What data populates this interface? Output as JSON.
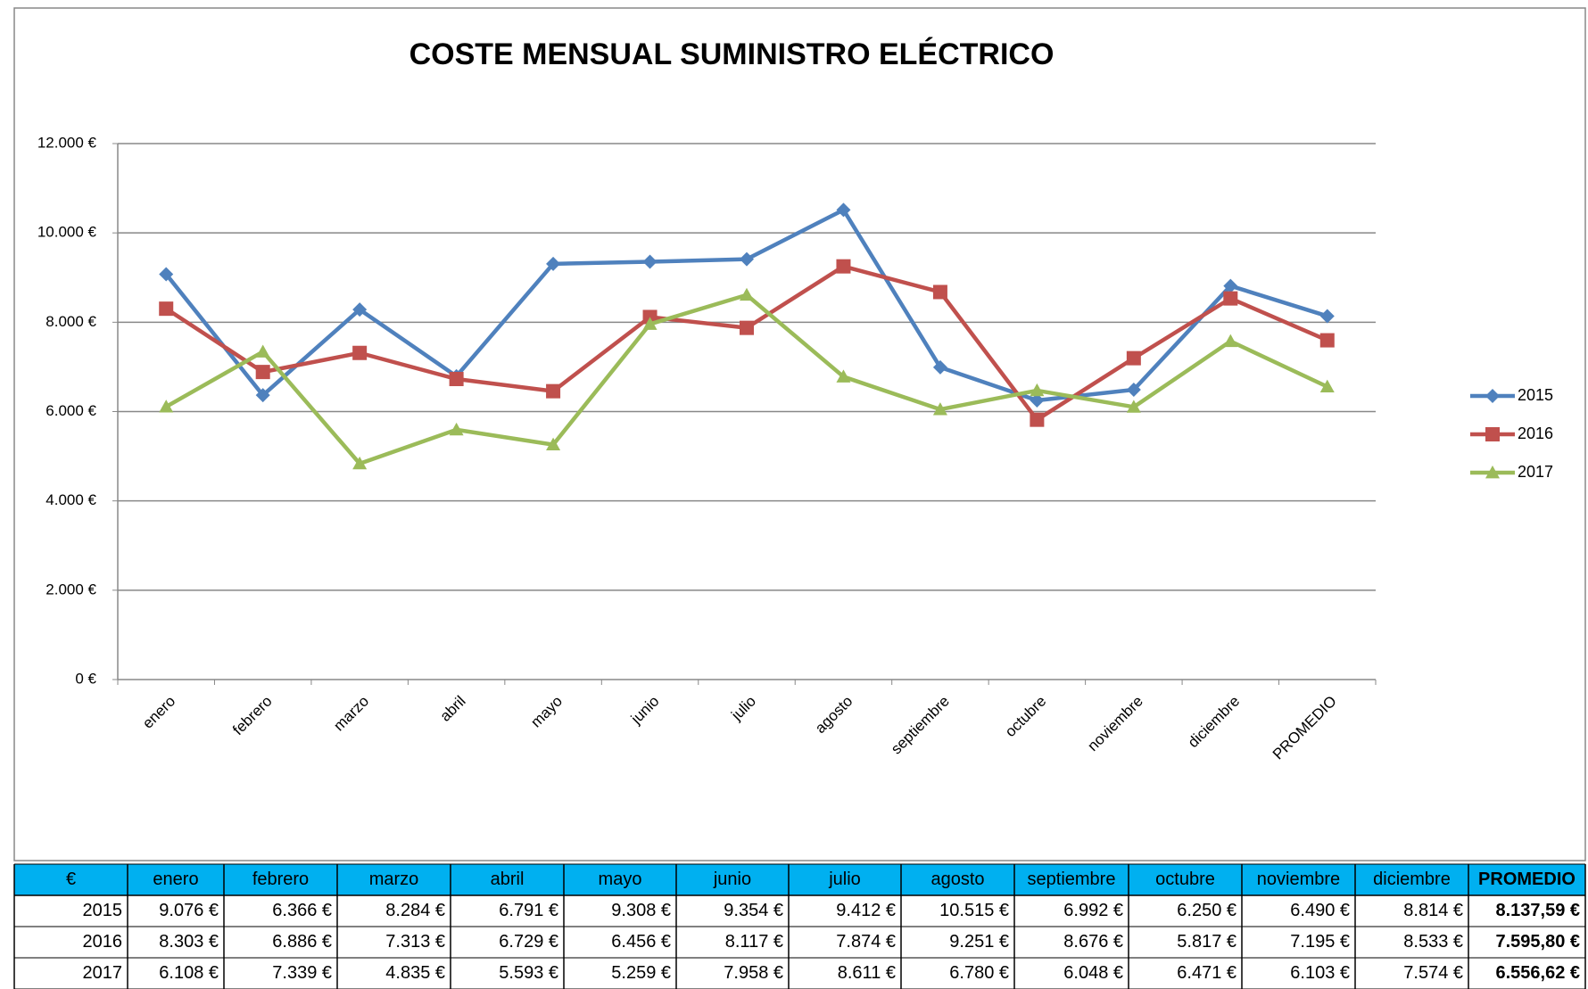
{
  "chart_data": {
    "type": "line",
    "title": "COSTE MENSUAL SUMINISTRO ELÉCTRICO",
    "categories": [
      "enero",
      "febrero",
      "marzo",
      "abril",
      "mayo",
      "junio",
      "julio",
      "agosto",
      "septiembre",
      "octubre",
      "noviembre",
      "diciembre",
      "PROMEDIO"
    ],
    "series": [
      {
        "name": "2015",
        "color": "#4f81bd",
        "marker": "diamond",
        "values": [
          9076,
          6366,
          8284,
          6791,
          9308,
          9354,
          9412,
          10515,
          6992,
          6250,
          6490,
          8814,
          8137.59
        ],
        "value_labels": [
          "9.076 €",
          "6.366 €",
          "8.284 €",
          "6.791 €",
          "9.308 €",
          "9.354 €",
          "9.412 €",
          "10.515 €",
          "6.992 €",
          "6.250 €",
          "6.490 €",
          "8.814 €",
          "8.137,59 €"
        ]
      },
      {
        "name": "2016",
        "color": "#c0504d",
        "marker": "square",
        "values": [
          8303,
          6886,
          7313,
          6729,
          6456,
          8117,
          7874,
          9251,
          8676,
          5817,
          7195,
          8533,
          7595.8
        ],
        "value_labels": [
          "8.303 €",
          "6.886 €",
          "7.313 €",
          "6.729 €",
          "6.456 €",
          "8.117 €",
          "7.874 €",
          "9.251 €",
          "8.676 €",
          "5.817 €",
          "7.195 €",
          "8.533 €",
          "7.595,80 €"
        ]
      },
      {
        "name": "2017",
        "color": "#9bbb59",
        "marker": "triangle",
        "values": [
          6108,
          7339,
          4835,
          5593,
          5259,
          7958,
          8611,
          6780,
          6048,
          6471,
          6103,
          7574,
          6556.62
        ],
        "value_labels": [
          "6.108 €",
          "7.339 €",
          "4.835 €",
          "5.593 €",
          "5.259 €",
          "7.958 €",
          "8.611 €",
          "6.780 €",
          "6.048 €",
          "6.471 €",
          "6.103 €",
          "7.574 €",
          "6.556,62 €"
        ]
      }
    ],
    "ylim": [
      0,
      12000
    ],
    "yticks": [
      {
        "value": 0,
        "label": "0 €"
      },
      {
        "value": 2000,
        "label": "2.000 €"
      },
      {
        "value": 4000,
        "label": "4.000 €"
      },
      {
        "value": 6000,
        "label": "6.000 €"
      },
      {
        "value": 8000,
        "label": "8.000 €"
      },
      {
        "value": 10000,
        "label": "10.000 €"
      },
      {
        "value": 12000,
        "label": "12.000 €"
      }
    ],
    "grid": true,
    "legend": "right"
  },
  "table": {
    "corner": "€",
    "header_color": "#00b0f0"
  }
}
